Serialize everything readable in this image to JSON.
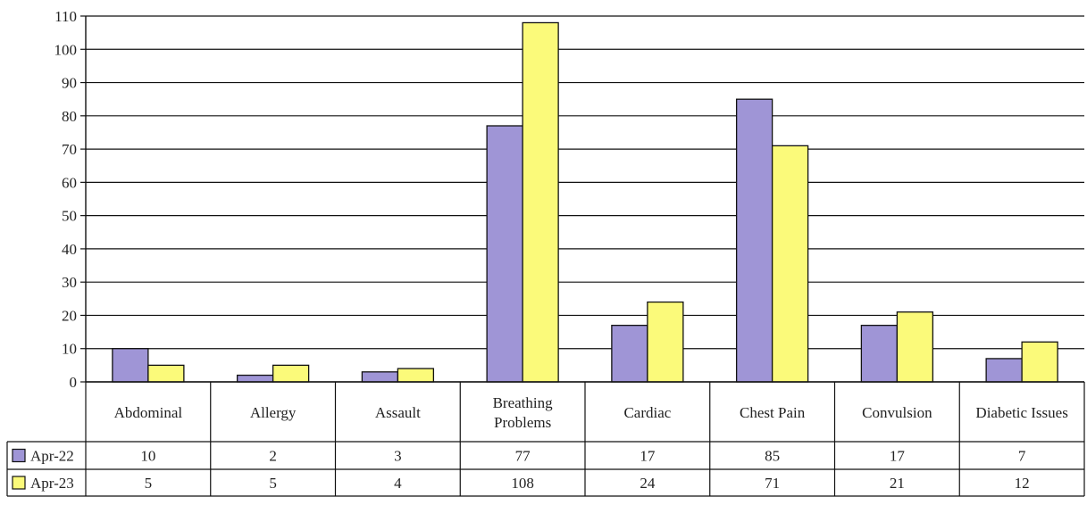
{
  "chart_data": {
    "type": "bar",
    "categories": [
      "Abdominal",
      "Allergy",
      "Assault",
      "Breathing Problems",
      "Cardiac",
      "Chest Pain",
      "Convulsion",
      "Diabetic Issues"
    ],
    "series": [
      {
        "name": "Apr-22",
        "values": [
          10,
          2,
          3,
          77,
          17,
          85,
          17,
          7
        ],
        "color": "#9f95d6"
      },
      {
        "name": "Apr-23",
        "values": [
          5,
          5,
          4,
          108,
          24,
          71,
          21,
          12
        ],
        "color": "#fbfa7a"
      }
    ],
    "ylim": [
      0,
      110
    ],
    "yticks": [
      0,
      10,
      20,
      30,
      40,
      50,
      60,
      70,
      80,
      90,
      100,
      110
    ],
    "grid": true,
    "legend": "data-table-left",
    "title": "",
    "xlabel": "",
    "ylabel": ""
  }
}
